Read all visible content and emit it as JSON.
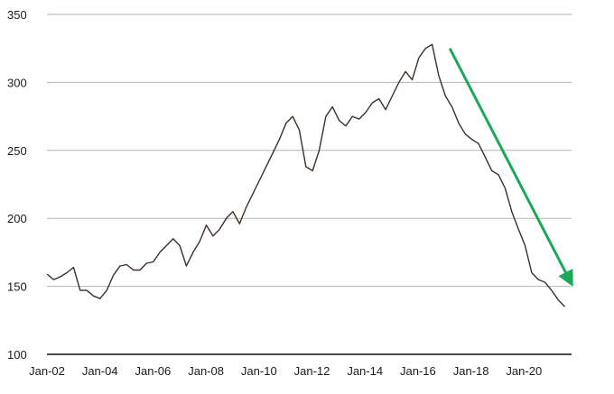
{
  "chart_data": {
    "type": "line",
    "title": "",
    "xlabel": "",
    "ylabel": "",
    "ylim": [
      100,
      350
    ],
    "yticks": [
      100,
      150,
      200,
      250,
      300,
      350
    ],
    "xtick_labels": [
      "Jan-02",
      "Jan-04",
      "Jan-06",
      "Jan-08",
      "Jan-10",
      "Jan-12",
      "Jan-14",
      "Jan-16",
      "Jan-18",
      "Jan-20"
    ],
    "grid": true,
    "line_color": "#3b302a",
    "series": [
      {
        "x": [
          "2002-01",
          "2002-04",
          "2002-07",
          "2002-10",
          "2003-01",
          "2003-04",
          "2003-07",
          "2003-10",
          "2004-01",
          "2004-04",
          "2004-07",
          "2004-10",
          "2005-01",
          "2005-04",
          "2005-07",
          "2005-10",
          "2006-01",
          "2006-04",
          "2006-07",
          "2006-10",
          "2007-01",
          "2007-04",
          "2007-07",
          "2007-10",
          "2008-01",
          "2008-04",
          "2008-07",
          "2008-10",
          "2009-01",
          "2009-04",
          "2009-07",
          "2009-10",
          "2010-01",
          "2010-04",
          "2010-07",
          "2010-10",
          "2011-01",
          "2011-04",
          "2011-07",
          "2011-10",
          "2012-01",
          "2012-04",
          "2012-07",
          "2012-10",
          "2013-01",
          "2013-04",
          "2013-07",
          "2013-10",
          "2014-01",
          "2014-04",
          "2014-07",
          "2014-10",
          "2015-01",
          "2015-04",
          "2015-07",
          "2015-10",
          "2016-01",
          "2016-04",
          "2016-07",
          "2016-10",
          "2017-01",
          "2017-04",
          "2017-07",
          "2017-10",
          "2018-01",
          "2018-04",
          "2018-07",
          "2018-10",
          "2019-01",
          "2019-04",
          "2019-07",
          "2019-10",
          "2020-01",
          "2020-04",
          "2020-07",
          "2020-10",
          "2021-01",
          "2021-04",
          "2021-07"
        ],
        "values": [
          159,
          155,
          157,
          160,
          164,
          147,
          147,
          143,
          141,
          147,
          158,
          165,
          166,
          162,
          162,
          167,
          168,
          175,
          180,
          185,
          180,
          165,
          175,
          183,
          195,
          187,
          192,
          200,
          205,
          196,
          208,
          218,
          228,
          238,
          248,
          258,
          270,
          275,
          265,
          238,
          235,
          250,
          275,
          282,
          272,
          268,
          275,
          273,
          278,
          285,
          288,
          280,
          290,
          300,
          308,
          302,
          318,
          325,
          328,
          305,
          290,
          282,
          270,
          262,
          258,
          255,
          245,
          235,
          232,
          222,
          205,
          192,
          180,
          160,
          155,
          153,
          147,
          140,
          135
        ]
      }
    ],
    "annotation": {
      "type": "trend-arrow",
      "color": "#1aa957",
      "from": [
        "2017-03",
        325
      ],
      "to": [
        "2021-09",
        155
      ]
    }
  }
}
